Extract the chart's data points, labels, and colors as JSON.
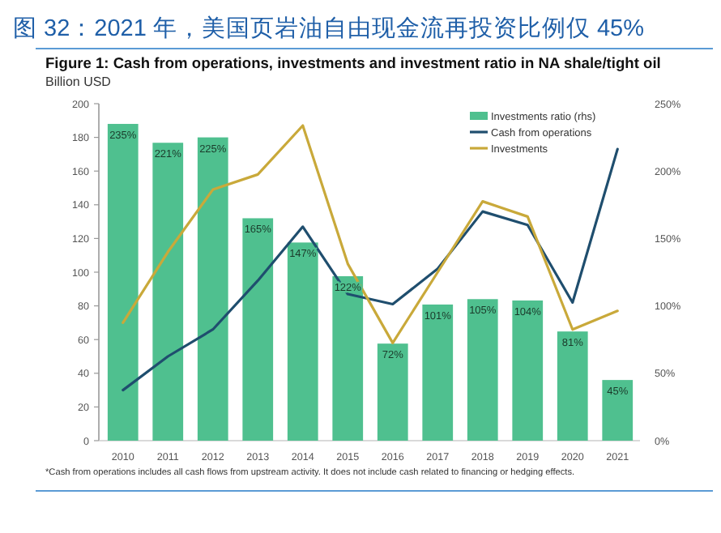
{
  "chart_data": {
    "type": "bar",
    "title": "图 32：2021 年，美国页岩油自由现金流再投资比例仅 45%",
    "subtitle": "Figure 1: Cash from operations, investments and investment ratio in NA shale/tight oil",
    "ylabel": "Billion USD",
    "categories": [
      "2010",
      "2011",
      "2012",
      "2013",
      "2014",
      "2015",
      "2016",
      "2017",
      "2018",
      "2019",
      "2020",
      "2021"
    ],
    "series": [
      {
        "name": "Investments ratio (rhs)",
        "axis": "y2",
        "color": "#4fc08f",
        "values": [
          235,
          221,
          225,
          165,
          147,
          122,
          72,
          101,
          105,
          104,
          81,
          45
        ],
        "value_labels": [
          "235%",
          "221%",
          "225%",
          "165%",
          "147%",
          "122%",
          "72%",
          "101%",
          "105%",
          "104%",
          "81%",
          "45%"
        ]
      },
      {
        "name": "Cash from operations",
        "type": "line",
        "color": "#1f4e6e",
        "values": [
          30,
          50,
          66,
          95,
          127,
          87,
          81,
          102,
          136,
          128,
          82,
          173
        ]
      },
      {
        "name": "Investments",
        "type": "line",
        "color": "#c9a93a",
        "values": [
          70,
          112,
          149,
          158,
          187,
          105,
          58,
          100,
          142,
          133,
          66,
          77
        ]
      }
    ],
    "ylim": [
      0,
      200
    ],
    "yticks": [
      0,
      20,
      40,
      60,
      80,
      100,
      120,
      140,
      160,
      180,
      200
    ],
    "y2lim": [
      0,
      250
    ],
    "y2ticks": [
      {
        "value": 0,
        "label": "0%"
      },
      {
        "value": 50,
        "label": "50%"
      },
      {
        "value": 100,
        "label": "100%"
      },
      {
        "value": 150,
        "label": "150%"
      },
      {
        "value": 200,
        "label": "200%"
      },
      {
        "value": 250,
        "label": "250%"
      }
    ],
    "legend": "top right",
    "annotations": [
      "*Cash from operations includes all cash flows from upstream activity. It does not include cash related to financing or hedging effects."
    ]
  }
}
